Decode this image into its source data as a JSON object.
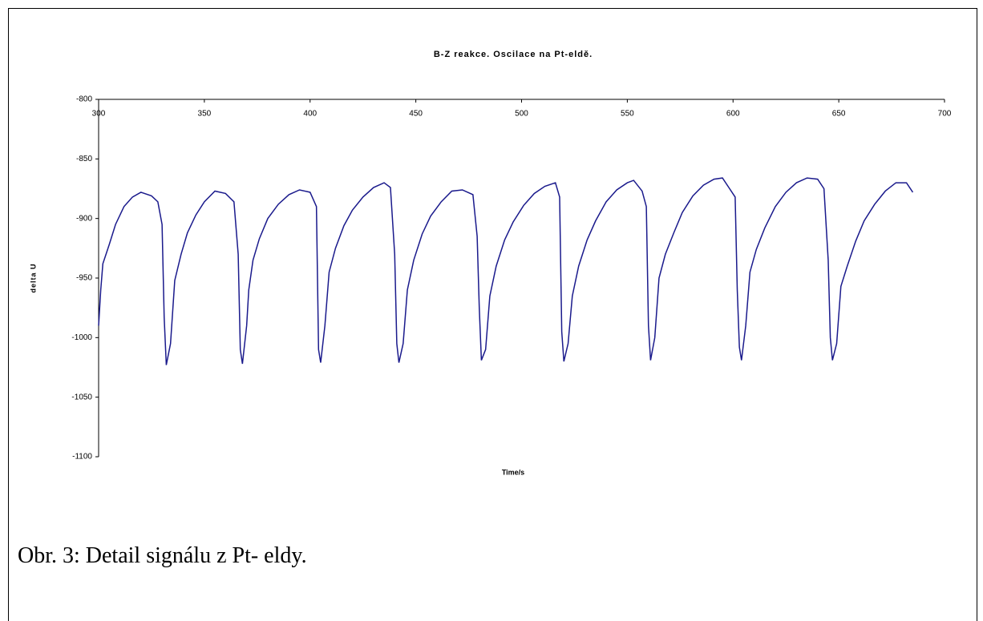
{
  "chart_data": {
    "type": "line",
    "title": "B-Z reakce. Oscilace na Pt-eldě.",
    "xlabel": "Time/s",
    "ylabel": "delta U",
    "color": "#1a1a8c",
    "xlim": [
      300,
      700
    ],
    "xticks": [
      300,
      350,
      400,
      450,
      500,
      550,
      600,
      650,
      700
    ],
    "ylim": [
      -1100,
      -800
    ],
    "yticks": [
      -800,
      -850,
      -900,
      -950,
      -1000,
      -1050,
      -1100
    ],
    "x": [
      300,
      301,
      302,
      305,
      308,
      312,
      316,
      320,
      325,
      328,
      330,
      331,
      332,
      334,
      336,
      339,
      342,
      346,
      350,
      355,
      360,
      364,
      366,
      367,
      368,
      370,
      371,
      373,
      376,
      380,
      385,
      390,
      395,
      400,
      403,
      404,
      405,
      407,
      409,
      412,
      416,
      420,
      425,
      430,
      435,
      438,
      440,
      441,
      442,
      444,
      446,
      449,
      453,
      457,
      462,
      467,
      472,
      477,
      479,
      480,
      481,
      483,
      485,
      488,
      492,
      496,
      501,
      506,
      511,
      516,
      518,
      519,
      520,
      522,
      524,
      527,
      531,
      535,
      540,
      545,
      550,
      553,
      557,
      559,
      560,
      561,
      563,
      565,
      568,
      572,
      576,
      581,
      586,
      591,
      595,
      598,
      601,
      602,
      603,
      604,
      606,
      608,
      611,
      615,
      620,
      625,
      630,
      635,
      640,
      643,
      645,
      646,
      647,
      649,
      651,
      654,
      658,
      662,
      667,
      672,
      677,
      682,
      685
    ],
    "values": [
      -990,
      -960,
      -938,
      -922,
      -905,
      -890,
      -882,
      -878,
      -881,
      -886,
      -905,
      -983,
      -1023,
      -1005,
      -952,
      -930,
      -912,
      -897,
      -886,
      -877,
      -879,
      -886,
      -930,
      -1010,
      -1022,
      -990,
      -960,
      -935,
      -917,
      -900,
      -888,
      -880,
      -876,
      -878,
      -890,
      -1010,
      -1021,
      -990,
      -945,
      -925,
      -906,
      -893,
      -882,
      -874,
      -870,
      -874,
      -930,
      -1005,
      -1021,
      -1005,
      -960,
      -935,
      -913,
      -898,
      -886,
      -877,
      -876,
      -880,
      -915,
      -975,
      -1019,
      -1010,
      -965,
      -940,
      -918,
      -903,
      -889,
      -879,
      -873,
      -870,
      -882,
      -995,
      -1020,
      -1005,
      -965,
      -940,
      -918,
      -902,
      -886,
      -876,
      -870,
      -868,
      -877,
      -890,
      -990,
      -1019,
      -1000,
      -950,
      -930,
      -912,
      -895,
      -881,
      -872,
      -867,
      -866,
      -874,
      -882,
      -960,
      -1008,
      -1019,
      -990,
      -945,
      -926,
      -908,
      -890,
      -878,
      -870,
      -866,
      -867,
      -875,
      -935,
      -1000,
      -1019,
      -1005,
      -957,
      -940,
      -919,
      -902,
      -888,
      -877,
      -870,
      -870,
      -878
    ]
  },
  "caption": "Obr. 3: Detail signálu z Pt- eldy."
}
